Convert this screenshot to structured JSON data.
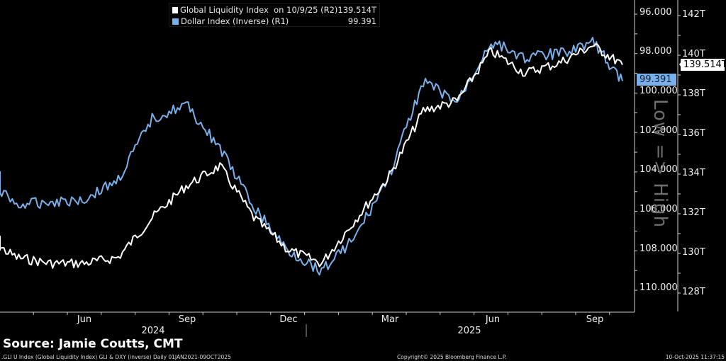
{
  "legend": {
    "series1": {
      "label": "Global Liquidity Index  on 10/9/25 (R2)",
      "value": "139.514T",
      "color": "#ffffff"
    },
    "series2": {
      "label": "Dollar Index (Inverse) (R1)",
      "value": "99.391",
      "color": "#7ab0ea"
    }
  },
  "axes": {
    "r1_ticks": [
      "96.000",
      "98.000",
      "100.000",
      "102.000",
      "104.000",
      "106.000",
      "108.000",
      "110.000"
    ],
    "r2_ticks": [
      "142T",
      "140T",
      "138T",
      "136T",
      "134T",
      "132T",
      "130T",
      "128T"
    ],
    "x_months": [
      "Jun",
      "Sep",
      "Dec",
      "Mar",
      "Jun",
      "Sep"
    ],
    "x_years": [
      "2024",
      "2025"
    ],
    "vertical_label": "Low => High"
  },
  "tags": {
    "dxy_last": "99.391",
    "gli_last": "139.514T"
  },
  "source": "Source: Jamie Coutts, CMT",
  "footer": {
    "left": ".GLI U Index (Global Liquidity Index) GLI & DXY (inverse) Daily 01JAN2021-09OCT2025",
    "center": "Copyright© 2025 Bloomberg Finance L.P.",
    "right": "10-Oct-2025 11:37:15"
  },
  "colors": {
    "background": "#000000",
    "gli": "#ffffff",
    "dxy": "#7ab0ea",
    "axis": "#d0d0d0"
  },
  "chart_data": {
    "type": "line",
    "title": "",
    "xlabel": "",
    "ylabel": "",
    "x_range": [
      "2024-03",
      "2025-10-09"
    ],
    "x_tick_labels": [
      "Jun 2024",
      "Sep 2024",
      "Dec 2024",
      "Mar 2025",
      "Jun 2025",
      "Sep 2025"
    ],
    "legend_position": "top-center",
    "grid": false,
    "series": [
      {
        "name": "Global Liquidity Index (R2)",
        "axis": "right-outer",
        "ylim": [
          127.0,
          142.7
        ],
        "unit": "T",
        "x": [
          "2024-03",
          "2024-04",
          "2024-05",
          "2024-06",
          "2024-07",
          "2024-08",
          "2024-09",
          "2024-10",
          "2024-11",
          "2024-12",
          "2025-01",
          "2025-02",
          "2025-03",
          "2025-04",
          "2025-05",
          "2025-06",
          "2025-07",
          "2025-08",
          "2025-09",
          "2025-10-09"
        ],
        "values": [
          130.8,
          129.8,
          129.5,
          129.5,
          129.8,
          131.8,
          133.4,
          134.4,
          131.8,
          130.2,
          129.5,
          131.7,
          133.9,
          137.2,
          137.7,
          140.2,
          139.1,
          139.6,
          140.5,
          139.514
        ]
      },
      {
        "name": "Dollar Index (Inverse) (R1)",
        "axis": "right-inner",
        "ylim": [
          110.8,
          95.3
        ],
        "inverted": true,
        "x": [
          "2024-03",
          "2024-04",
          "2024-05",
          "2024-06",
          "2024-07",
          "2024-08",
          "2024-09",
          "2024-10",
          "2024-11",
          "2024-12",
          "2025-01",
          "2025-02",
          "2025-03",
          "2025-04",
          "2025-05",
          "2025-06",
          "2025-07",
          "2025-08",
          "2025-09",
          "2025-10-09"
        ],
        "values": [
          104.0,
          105.7,
          105.5,
          105.4,
          104.4,
          101.3,
          100.6,
          102.8,
          105.8,
          108.0,
          109.0,
          107.3,
          104.2,
          99.4,
          100.5,
          97.4,
          98.2,
          98.0,
          97.4,
          99.391
        ]
      }
    ]
  }
}
